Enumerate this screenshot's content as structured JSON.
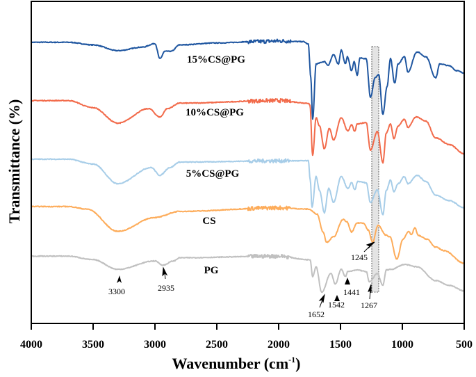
{
  "chart_data": {
    "type": "line",
    "xlabel": "Wavenumber (cm",
    "xlabel_sup": "-1",
    "xlabel_close": ")",
    "ylabel": "Transmittance (%)",
    "xlim": [
      4000,
      500
    ],
    "x_reversed": true,
    "ylim": [
      0,
      100
    ],
    "y_ticks_shown": false,
    "grid": false,
    "x_ticks": [
      "4000",
      "3500",
      "3000",
      "2500",
      "2000",
      "1500",
      "1000",
      "500"
    ],
    "series": [
      {
        "name": "15%CS@PG",
        "color": "#1f56a0",
        "points": [
          [
            4000,
            87.3
          ],
          [
            3700,
            87.3
          ],
          [
            3500,
            86.5
          ],
          [
            3300,
            84.7
          ],
          [
            3100,
            85.8
          ],
          [
            3000,
            86.9
          ],
          [
            2960,
            82.2
          ],
          [
            2920,
            84.5
          ],
          [
            2870,
            84.5
          ],
          [
            2800,
            86.5
          ],
          [
            2500,
            87.1
          ],
          [
            2200,
            87.5
          ],
          [
            2000,
            87.7
          ],
          [
            1800,
            87.5
          ],
          [
            1760,
            86.7
          ],
          [
            1740,
            76.3
          ],
          [
            1725,
            63.4
          ],
          [
            1697,
            80.6
          ],
          [
            1630,
            81.3
          ],
          [
            1601,
            80.2
          ],
          [
            1556,
            83.4
          ],
          [
            1517,
            80.6
          ],
          [
            1494,
            84.9
          ],
          [
            1461,
            80.6
          ],
          [
            1445,
            82.8
          ],
          [
            1410,
            78.5
          ],
          [
            1390,
            81.3
          ],
          [
            1365,
            77.0
          ],
          [
            1343,
            82.4
          ],
          [
            1292,
            82.2
          ],
          [
            1258,
            70.3
          ],
          [
            1219,
            76.3
          ],
          [
            1191,
            77.4
          ],
          [
            1157,
            64.9
          ],
          [
            1124,
            73.5
          ],
          [
            1096,
            82.2
          ],
          [
            1062,
            74.6
          ],
          [
            1034,
            80.6
          ],
          [
            983,
            82.8
          ],
          [
            955,
            78.1
          ],
          [
            882,
            84.3
          ],
          [
            809,
            82.8
          ],
          [
            730,
            76.3
          ],
          [
            697,
            80.6
          ],
          [
            618,
            80.0
          ],
          [
            562,
            78.5
          ],
          [
            500,
            77.8
          ]
        ]
      },
      {
        "name": "10%CS@PG",
        "color": "#f26b4b",
        "points": [
          [
            4000,
            69.2
          ],
          [
            3700,
            69.2
          ],
          [
            3500,
            67.0
          ],
          [
            3300,
            62.2
          ],
          [
            3050,
            66.7
          ],
          [
            2960,
            64.1
          ],
          [
            2900,
            66.7
          ],
          [
            2800,
            68.4
          ],
          [
            2000,
            69.2
          ],
          [
            1760,
            68.4
          ],
          [
            1747,
            67.7
          ],
          [
            1725,
            52.3
          ],
          [
            1697,
            63.9
          ],
          [
            1670,
            61.3
          ],
          [
            1630,
            54.2
          ],
          [
            1590,
            60.6
          ],
          [
            1556,
            57.0
          ],
          [
            1494,
            63.9
          ],
          [
            1440,
            59.8
          ],
          [
            1410,
            61.7
          ],
          [
            1385,
            59.6
          ],
          [
            1365,
            61.9
          ],
          [
            1292,
            62.4
          ],
          [
            1258,
            53.8
          ],
          [
            1202,
            59.6
          ],
          [
            1157,
            49.9
          ],
          [
            1130,
            59.1
          ],
          [
            1096,
            61.9
          ],
          [
            1068,
            57.4
          ],
          [
            1034,
            61.3
          ],
          [
            983,
            63.4
          ],
          [
            955,
            60.9
          ],
          [
            888,
            64.1
          ],
          [
            809,
            62.8
          ],
          [
            730,
            57.6
          ],
          [
            618,
            55.5
          ],
          [
            500,
            52.7
          ]
        ]
      },
      {
        "name": "5%CS@PG",
        "color": "#a7cde8",
        "points": [
          [
            4000,
            51.0
          ],
          [
            3700,
            51.0
          ],
          [
            3500,
            49.5
          ],
          [
            3300,
            43.4
          ],
          [
            3030,
            48.4
          ],
          [
            2960,
            46.0
          ],
          [
            2880,
            48.4
          ],
          [
            2800,
            50.1
          ],
          [
            2000,
            50.5
          ],
          [
            1760,
            50.5
          ],
          [
            1745,
            44.7
          ],
          [
            1730,
            36.1
          ],
          [
            1697,
            45.6
          ],
          [
            1670,
            41.3
          ],
          [
            1630,
            34.4
          ],
          [
            1595,
            41.9
          ],
          [
            1556,
            37.6
          ],
          [
            1494,
            45.6
          ],
          [
            1440,
            41.9
          ],
          [
            1410,
            43.7
          ],
          [
            1385,
            41.5
          ],
          [
            1360,
            44.1
          ],
          [
            1292,
            43.7
          ],
          [
            1258,
            37.6
          ],
          [
            1202,
            41.5
          ],
          [
            1157,
            33.8
          ],
          [
            1130,
            41.3
          ],
          [
            1096,
            44.5
          ],
          [
            1068,
            40.9
          ],
          [
            1034,
            43.4
          ],
          [
            983,
            45.6
          ],
          [
            955,
            43.4
          ],
          [
            882,
            46.0
          ],
          [
            809,
            44.1
          ],
          [
            730,
            39.8
          ],
          [
            618,
            38.1
          ],
          [
            500,
            35.9
          ]
        ]
      },
      {
        "name": "CS",
        "color": "#fdac5a",
        "points": [
          [
            4000,
            36.3
          ],
          [
            3700,
            36.3
          ],
          [
            3550,
            35.5
          ],
          [
            3300,
            28.6
          ],
          [
            3000,
            32.9
          ],
          [
            2800,
            34.8
          ],
          [
            2000,
            35.9
          ],
          [
            1760,
            35.5
          ],
          [
            1690,
            34.0
          ],
          [
            1640,
            28.4
          ],
          [
            1612,
            25.2
          ],
          [
            1556,
            26.9
          ],
          [
            1478,
            32.3
          ],
          [
            1450,
            31.6
          ],
          [
            1410,
            28.4
          ],
          [
            1365,
            31.2
          ],
          [
            1315,
            31.2
          ],
          [
            1275,
            29.0
          ],
          [
            1241,
            25.2
          ],
          [
            1196,
            30.5
          ],
          [
            1135,
            27.5
          ],
          [
            1101,
            26.9
          ],
          [
            1045,
            20.0
          ],
          [
            994,
            26.2
          ],
          [
            950,
            28.6
          ],
          [
            927,
            27.5
          ],
          [
            899,
            29.7
          ],
          [
            871,
            27.3
          ],
          [
            803,
            26.2
          ],
          [
            730,
            23.7
          ],
          [
            663,
            22.6
          ],
          [
            500,
            18.7
          ]
        ]
      },
      {
        "name": "PG",
        "color": "#c0c0c0",
        "points": [
          [
            4000,
            20.9
          ],
          [
            3700,
            20.9
          ],
          [
            3500,
            19.8
          ],
          [
            3300,
            16.8
          ],
          [
            3000,
            19.4
          ],
          [
            2935,
            18.1
          ],
          [
            2850,
            19.4
          ],
          [
            2800,
            20.4
          ],
          [
            2000,
            20.9
          ],
          [
            1760,
            19.8
          ],
          [
            1745,
            19.8
          ],
          [
            1725,
            14.6
          ],
          [
            1697,
            17.6
          ],
          [
            1652,
            9.7
          ],
          [
            1578,
            15.5
          ],
          [
            1542,
            12.3
          ],
          [
            1494,
            16.8
          ],
          [
            1460,
            14.6
          ],
          [
            1441,
            16.1
          ],
          [
            1360,
            16.6
          ],
          [
            1292,
            16.1
          ],
          [
            1267,
            12.9
          ],
          [
            1202,
            15.5
          ],
          [
            1157,
            11.8
          ],
          [
            1130,
            16.6
          ],
          [
            1090,
            16.8
          ],
          [
            983,
            18.3
          ],
          [
            882,
            17.6
          ],
          [
            730,
            13.3
          ],
          [
            618,
            11.8
          ],
          [
            500,
            10.1
          ]
        ]
      }
    ],
    "annotations": [
      "3300",
      "2935",
      "1652",
      "1542",
      "1441",
      "1267",
      "1245"
    ],
    "highlight_band": [
      1245,
      1200
    ]
  }
}
